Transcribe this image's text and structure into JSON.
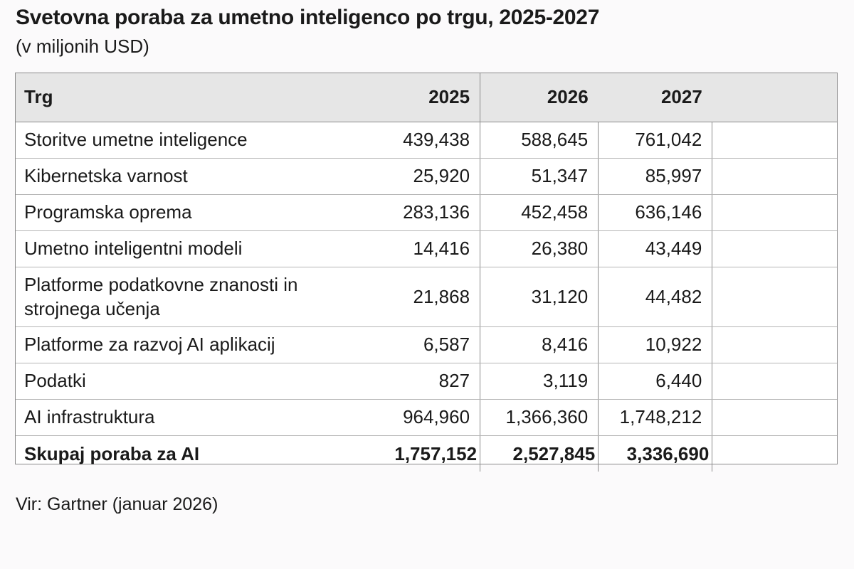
{
  "title": "Svetovna poraba za umetno inteligenco po trgu, 2025-2027",
  "subtitle": "(v miljonih USD)",
  "table": {
    "headers": [
      "Trg",
      "2025",
      "2026",
      "2027"
    ],
    "rows": [
      {
        "label": "Storitve umetne inteligence",
        "values": [
          "439,438",
          "588,645",
          "761,042"
        ]
      },
      {
        "label": "Kibernetska varnost",
        "values": [
          "25,920",
          "51,347",
          "85,997"
        ]
      },
      {
        "label": "Programska oprema",
        "values": [
          "283,136",
          "452,458",
          "636,146"
        ]
      },
      {
        "label": "Umetno inteligentni modeli",
        "values": [
          "14,416",
          "26,380",
          "43,449"
        ]
      },
      {
        "label": "Platforme podatkovne znanosti in strojnega učenja",
        "values": [
          "21,868",
          "31,120",
          "44,482"
        ]
      },
      {
        "label": "Platforme za razvoj AI aplikacij",
        "values": [
          "6,587",
          "8,416",
          "10,922"
        ]
      },
      {
        "label": "Podatki",
        "values": [
          "827",
          "3,119",
          "6,440"
        ]
      },
      {
        "label": "AI infrastruktura",
        "values": [
          "964,960",
          "1,366,360",
          "1,748,212"
        ]
      }
    ],
    "total": {
      "label": "Skupaj poraba za AI",
      "values": [
        "1,757,152",
        "2,527,845",
        "3,336,690"
      ]
    }
  },
  "source": "Vir: Gartner (januar 2026)"
}
